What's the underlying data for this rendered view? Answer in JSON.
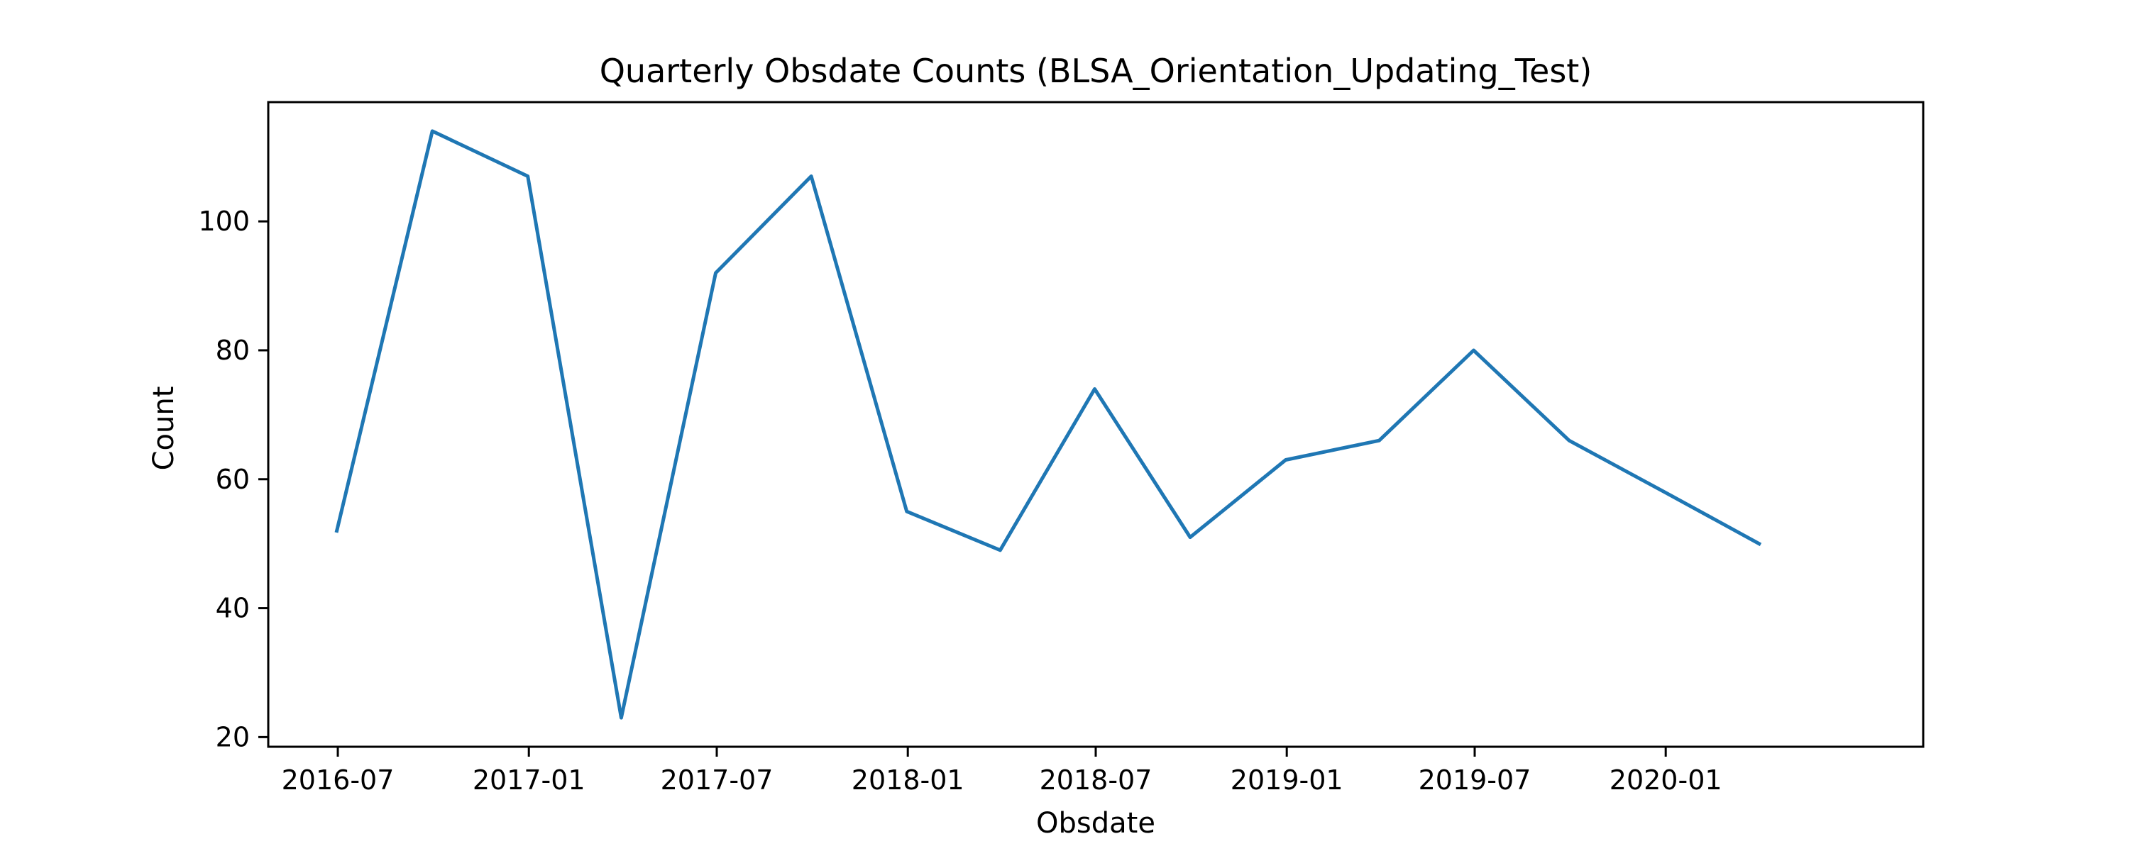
{
  "chart_data": {
    "type": "line",
    "title": "Quarterly Obsdate Counts (BLSA_Orientation_Updating_Test)",
    "xlabel": "Obsdate",
    "ylabel": "Count",
    "x_ticks": [
      "2016-07",
      "2017-01",
      "2017-07",
      "2018-01",
      "2018-07",
      "2019-01",
      "2019-07",
      "2020-01"
    ],
    "y_ticks": [
      20,
      40,
      60,
      80,
      100
    ],
    "xlim": [
      "2016-04-25",
      "2020-09-05"
    ],
    "ylim": [
      18.5,
      118.5
    ],
    "grid": false,
    "legend": "none",
    "series": [
      {
        "color": "#1f77b4",
        "x": [
          "2016-06-30",
          "2016-09-30",
          "2016-12-31",
          "2017-03-31",
          "2017-06-30",
          "2017-09-30",
          "2017-12-31",
          "2018-03-31",
          "2018-06-30",
          "2018-09-30",
          "2018-12-31",
          "2019-03-31",
          "2019-06-30",
          "2019-09-30",
          "2019-12-31",
          "2020-03-31"
        ],
        "y": [
          52,
          114,
          107,
          23,
          92,
          107,
          55,
          49,
          74,
          51,
          63,
          66,
          80,
          66,
          58,
          50
        ]
      }
    ]
  }
}
